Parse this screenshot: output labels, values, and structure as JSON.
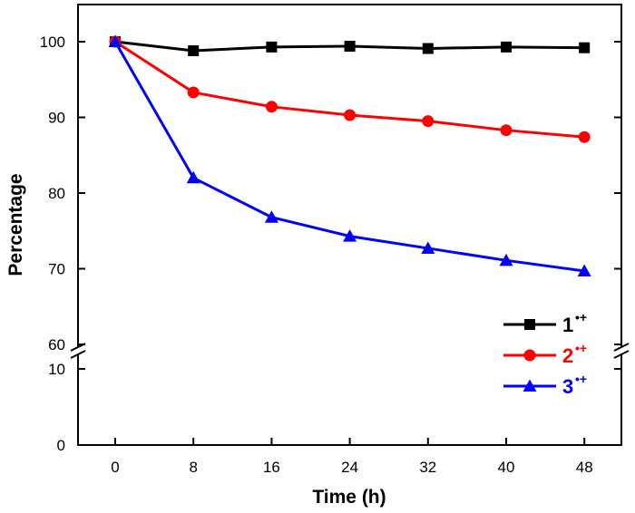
{
  "chart_data": {
    "type": "line",
    "xlabel": "Time (h)",
    "ylabel": "Percentage",
    "x": [
      0,
      8,
      16,
      24,
      32,
      40,
      48
    ],
    "x_ticks": [
      "0",
      "8",
      "16",
      "24",
      "32",
      "40",
      "48"
    ],
    "y_axis_break": true,
    "y_lower_segment": {
      "range": [
        0,
        12
      ],
      "ticks": [
        "0",
        "10"
      ]
    },
    "y_upper_segment": {
      "range": [
        60,
        105
      ],
      "ticks": [
        "60",
        "70",
        "80",
        "90",
        "100"
      ]
    },
    "legend_position": "bottom-right",
    "series": [
      {
        "name": "1",
        "name_sup": "•+",
        "color": "#000000",
        "marker": "square",
        "values": [
          100,
          98.8,
          99.3,
          99.4,
          99.1,
          99.3,
          99.2
        ]
      },
      {
        "name": "2",
        "name_sup": "•+",
        "color": "#ff0000",
        "marker": "circle",
        "values": [
          100,
          93.3,
          91.4,
          90.3,
          89.5,
          88.3,
          87.4
        ]
      },
      {
        "name": "3",
        "name_sup": "•+",
        "color": "#0000ff",
        "marker": "triangle",
        "values": [
          100,
          82.0,
          76.8,
          74.3,
          72.7,
          71.1,
          69.7
        ]
      }
    ]
  }
}
